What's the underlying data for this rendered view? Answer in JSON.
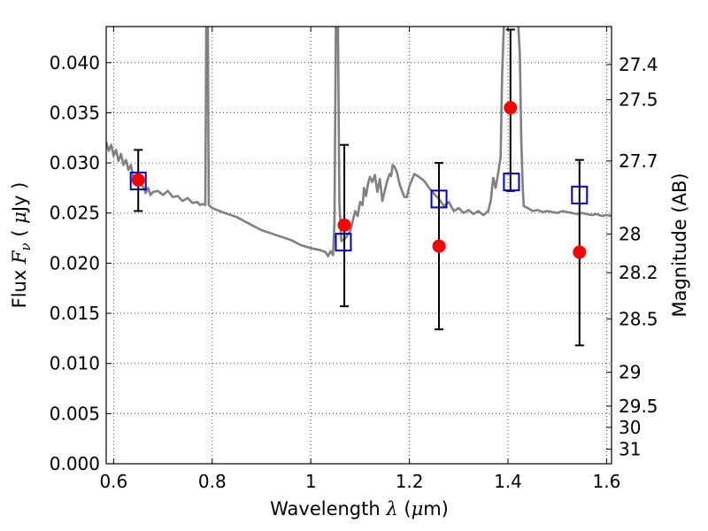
{
  "chart_data": {
    "type": "scatter",
    "xlabel": "Wavelength",
    "xlabel_symbol": "λ",
    "xlabel_unit_open": " (",
    "xlabel_unit_mu": "μ",
    "xlabel_unit_rest": "m)",
    "ylabel": "Flux",
    "ylabel_symbol": "F",
    "ylabel_sub": "ν",
    "ylabel_unit_open": " ( ",
    "ylabel_unit_mu": "μ",
    "ylabel_unit_rest": "Jy )",
    "y2label": "Magnitude (AB)",
    "xlim": [
      0.585,
      1.61
    ],
    "ylim": [
      0.0,
      0.0436
    ],
    "grid": true,
    "x_ticks": [
      0.6,
      0.8,
      1.0,
      1.2,
      1.4,
      1.6
    ],
    "x_tick_labels": [
      "0.6",
      "0.8",
      "1",
      "1.2",
      "1.4",
      "1.6"
    ],
    "y_ticks": [
      0.0,
      0.005,
      0.01,
      0.015,
      0.02,
      0.025,
      0.03,
      0.035,
      0.04
    ],
    "y_tick_labels": [
      "0.000",
      "0.005",
      "0.010",
      "0.015",
      "0.020",
      "0.025",
      "0.030",
      "0.035",
      "0.040"
    ],
    "y2_ticks": [
      {
        "label": "27.4",
        "flux": 0.03981
      },
      {
        "label": "27.5",
        "flux": 0.03631
      },
      {
        "label": "27.7",
        "flux": 0.0302
      },
      {
        "label": "28",
        "flux": 0.02291
      },
      {
        "label": "28.2",
        "flux": 0.01905
      },
      {
        "label": "28.5",
        "flux": 0.01445
      },
      {
        "label": "29",
        "flux": 0.00912
      },
      {
        "label": "29.5",
        "flux": 0.00575
      },
      {
        "label": "30",
        "flux": 0.00363
      },
      {
        "label": "31",
        "flux": 0.00145
      }
    ],
    "series": [
      {
        "kind": "line",
        "color": "#808080",
        "points": [
          [
            0.585,
            0.0321
          ],
          [
            0.59,
            0.0312
          ],
          [
            0.595,
            0.0318
          ],
          [
            0.6,
            0.0307
          ],
          [
            0.605,
            0.0313
          ],
          [
            0.61,
            0.0302
          ],
          [
            0.615,
            0.0309
          ],
          [
            0.62,
            0.0298
          ],
          [
            0.625,
            0.0303
          ],
          [
            0.63,
            0.0293
          ],
          [
            0.635,
            0.0298
          ],
          [
            0.64,
            0.0286
          ],
          [
            0.65,
            0.0281
          ],
          [
            0.66,
            0.0276
          ],
          [
            0.665,
            0.027
          ],
          [
            0.67,
            0.0275
          ],
          [
            0.675,
            0.0268
          ],
          [
            0.68,
            0.0271
          ],
          [
            0.69,
            0.0272
          ],
          [
            0.7,
            0.0268
          ],
          [
            0.71,
            0.0272
          ],
          [
            0.72,
            0.0266
          ],
          [
            0.73,
            0.0267
          ],
          [
            0.74,
            0.0262
          ],
          [
            0.75,
            0.0265
          ],
          [
            0.76,
            0.026
          ],
          [
            0.77,
            0.0261
          ],
          [
            0.775,
            0.0258
          ],
          [
            0.78,
            0.0259
          ],
          [
            0.786,
            0.0258
          ],
          [
            0.788,
            0.0445
          ],
          [
            0.791,
            0.0445
          ],
          [
            0.793,
            0.0258
          ],
          [
            0.8,
            0.0255
          ],
          [
            0.82,
            0.0251
          ],
          [
            0.85,
            0.0246
          ],
          [
            0.88,
            0.0238
          ],
          [
            0.9,
            0.0233
          ],
          [
            0.93,
            0.0228
          ],
          [
            0.96,
            0.0223
          ],
          [
            0.98,
            0.0218
          ],
          [
            1.0,
            0.0215
          ],
          [
            1.02,
            0.0213
          ],
          [
            1.03,
            0.0211
          ],
          [
            1.035,
            0.0207
          ],
          [
            1.04,
            0.0212
          ],
          [
            1.045,
            0.0208
          ],
          [
            1.048,
            0.024
          ],
          [
            1.051,
            0.0445
          ],
          [
            1.055,
            0.0445
          ],
          [
            1.058,
            0.026
          ],
          [
            1.062,
            0.0222
          ],
          [
            1.07,
            0.0225
          ],
          [
            1.08,
            0.0232
          ],
          [
            1.09,
            0.0252
          ],
          [
            1.095,
            0.0247
          ],
          [
            1.1,
            0.0261
          ],
          [
            1.105,
            0.0258
          ],
          [
            1.108,
            0.0275
          ],
          [
            1.112,
            0.0267
          ],
          [
            1.116,
            0.0279
          ],
          [
            1.12,
            0.0286
          ],
          [
            1.125,
            0.0281
          ],
          [
            1.13,
            0.0288
          ],
          [
            1.135,
            0.0271
          ],
          [
            1.14,
            0.0284
          ],
          [
            1.145,
            0.0262
          ],
          [
            1.15,
            0.0272
          ],
          [
            1.155,
            0.0282
          ],
          [
            1.16,
            0.0289
          ],
          [
            1.163,
            0.0287
          ],
          [
            1.166,
            0.0298
          ],
          [
            1.17,
            0.0296
          ],
          [
            1.175,
            0.029
          ],
          [
            1.18,
            0.0279
          ],
          [
            1.185,
            0.0272
          ],
          [
            1.19,
            0.0266
          ],
          [
            1.195,
            0.0266
          ],
          [
            1.2,
            0.0277
          ],
          [
            1.21,
            0.0289
          ],
          [
            1.22,
            0.0286
          ],
          [
            1.23,
            0.0282
          ],
          [
            1.24,
            0.0275
          ],
          [
            1.25,
            0.0269
          ],
          [
            1.26,
            0.0264
          ],
          [
            1.27,
            0.0257
          ],
          [
            1.28,
            0.0261
          ],
          [
            1.29,
            0.0252
          ],
          [
            1.3,
            0.0255
          ],
          [
            1.31,
            0.025
          ],
          [
            1.32,
            0.0253
          ],
          [
            1.33,
            0.0249
          ],
          [
            1.34,
            0.0252
          ],
          [
            1.35,
            0.0248
          ],
          [
            1.36,
            0.0252
          ],
          [
            1.365,
            0.0262
          ],
          [
            1.37,
            0.0285
          ],
          [
            1.375,
            0.0275
          ],
          [
            1.38,
            0.029
          ],
          [
            1.385,
            0.0306
          ],
          [
            1.388,
            0.0385
          ],
          [
            1.392,
            0.0445
          ],
          [
            1.42,
            0.0445
          ],
          [
            1.424,
            0.0408
          ],
          [
            1.427,
            0.032
          ],
          [
            1.43,
            0.0275
          ],
          [
            1.432,
            0.0257
          ],
          [
            1.44,
            0.0255
          ],
          [
            1.45,
            0.0252
          ],
          [
            1.46,
            0.0253
          ],
          [
            1.47,
            0.0251
          ],
          [
            1.48,
            0.0252
          ],
          [
            1.49,
            0.0251
          ],
          [
            1.5,
            0.025
          ],
          [
            1.51,
            0.0252
          ],
          [
            1.52,
            0.0251
          ],
          [
            1.53,
            0.025
          ],
          [
            1.54,
            0.0249
          ],
          [
            1.55,
            0.025
          ],
          [
            1.56,
            0.0249
          ],
          [
            1.57,
            0.0248
          ],
          [
            1.58,
            0.0249
          ],
          [
            1.59,
            0.0247
          ],
          [
            1.6,
            0.0248
          ],
          [
            1.61,
            0.0247
          ]
        ]
      },
      {
        "kind": "points",
        "marker": "circle",
        "color": "#ff0000",
        "points": [
          {
            "x": 0.65,
            "y": 0.0283,
            "yerr_lo": 0.0252,
            "yerr_hi": 0.0313
          },
          {
            "x": 1.068,
            "y": 0.0238,
            "yerr_lo": 0.0157,
            "yerr_hi": 0.0318
          },
          {
            "x": 1.26,
            "y": 0.0217,
            "yerr_lo": 0.0134,
            "yerr_hi": 0.03
          },
          {
            "x": 1.405,
            "y": 0.0355,
            "yerr_lo": 0.0272,
            "yerr_hi": 0.0433
          },
          {
            "x": 1.545,
            "y": 0.0211,
            "yerr_lo": 0.0118,
            "yerr_hi": 0.0303
          }
        ]
      },
      {
        "kind": "points",
        "marker": "square",
        "color": "#0000cc",
        "points": [
          {
            "x": 0.65,
            "y": 0.0282
          },
          {
            "x": 1.066,
            "y": 0.0221
          },
          {
            "x": 1.26,
            "y": 0.0264
          },
          {
            "x": 1.407,
            "y": 0.0281
          },
          {
            "x": 1.545,
            "y": 0.0268
          }
        ]
      }
    ]
  }
}
